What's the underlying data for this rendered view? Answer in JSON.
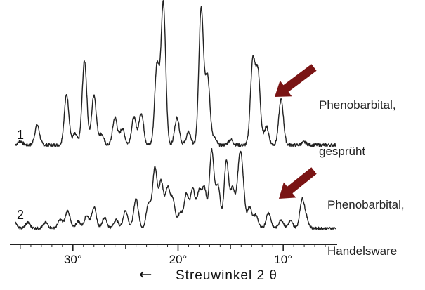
{
  "chart_data": {
    "type": "line",
    "title": "",
    "xlabel": "Streuwinkel 2 θ",
    "xlabel_arrow": "←",
    "ylabel": "",
    "x_reversed": true,
    "xlim": [
      36,
      5
    ],
    "x_ticks": [
      30,
      20,
      10
    ],
    "x_tick_labels": [
      "30°",
      "20°",
      "10°"
    ],
    "grid": false,
    "arrow_color": "#7a1414",
    "line_color": "#222222",
    "series": [
      {
        "label": "1",
        "annotation": [
          "Phenobarbital,",
          "gesprüht"
        ],
        "baseline": 0.05,
        "peaks": [
          [
            35.0,
            0.04
          ],
          [
            33.4,
            0.22
          ],
          [
            30.6,
            0.55
          ],
          [
            29.8,
            0.12
          ],
          [
            28.9,
            0.92
          ],
          [
            28.0,
            0.55
          ],
          [
            27.3,
            0.12
          ],
          [
            26.0,
            0.3
          ],
          [
            25.3,
            0.18
          ],
          [
            24.2,
            0.3
          ],
          [
            23.5,
            0.35
          ],
          [
            22.0,
            0.88
          ],
          [
            21.4,
            1.55
          ],
          [
            20.1,
            0.3
          ],
          [
            19.0,
            0.14
          ],
          [
            17.8,
            1.5
          ],
          [
            17.2,
            0.75
          ],
          [
            16.6,
            0.08
          ],
          [
            15.0,
            0.06
          ],
          [
            12.9,
            0.9
          ],
          [
            12.4,
            0.78
          ],
          [
            11.6,
            0.2
          ],
          [
            10.2,
            0.5
          ],
          [
            8.0,
            0.03
          ]
        ]
      },
      {
        "label": "2",
        "annotation": [
          "Phenobarbital,",
          "Handelsware"
        ],
        "baseline": 0.05,
        "peaks": [
          [
            35.7,
            0.18
          ],
          [
            34.3,
            0.08
          ],
          [
            32.6,
            0.08
          ],
          [
            31.2,
            0.12
          ],
          [
            30.5,
            0.25
          ],
          [
            29.5,
            0.1
          ],
          [
            28.7,
            0.18
          ],
          [
            28.0,
            0.3
          ],
          [
            27.0,
            0.15
          ],
          [
            25.9,
            0.12
          ],
          [
            25.0,
            0.25
          ],
          [
            24.0,
            0.42
          ],
          [
            22.8,
            0.35
          ],
          [
            22.2,
            0.85
          ],
          [
            21.6,
            0.65
          ],
          [
            21.0,
            0.55
          ],
          [
            20.5,
            0.4
          ],
          [
            19.8,
            0.22
          ],
          [
            19.2,
            0.48
          ],
          [
            18.6,
            0.55
          ],
          [
            18.0,
            0.5
          ],
          [
            17.5,
            0.55
          ],
          [
            16.8,
            1.1
          ],
          [
            16.2,
            0.6
          ],
          [
            15.4,
            0.95
          ],
          [
            14.8,
            0.55
          ],
          [
            14.2,
            0.72
          ],
          [
            13.9,
            0.65
          ],
          [
            13.2,
            0.3
          ],
          [
            12.6,
            0.18
          ],
          [
            11.4,
            0.22
          ],
          [
            10.2,
            0.12
          ],
          [
            9.3,
            0.1
          ],
          [
            8.2,
            0.4
          ],
          [
            7.8,
            0.12
          ]
        ]
      }
    ]
  }
}
